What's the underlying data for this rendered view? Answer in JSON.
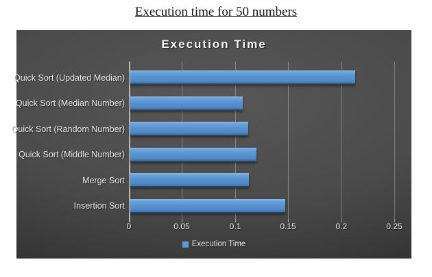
{
  "page": {
    "title": "Execution time for 50 numbers"
  },
  "chart": {
    "title": "Execution Time",
    "legend_label": "Execution Time",
    "colors": {
      "bar": "#5b9bd5",
      "bar_light": "#8cb8e5",
      "bar_dark": "#44709f",
      "background_center": "#575757",
      "background_edge": "#262626",
      "text": "#ededed",
      "axis": "#b9b9b9"
    }
  },
  "chart_data": {
    "type": "bar",
    "orientation": "horizontal",
    "title": "Execution Time",
    "categories": [
      "Quick Sort (Updated Median)",
      "Quick Sort (Median Number)",
      "Quick Sort (Random Number)",
      "Quick Sort (Middle Number)",
      "Merge Sort",
      "Insertion Sort"
    ],
    "series": [
      {
        "name": "Execution Time",
        "values": [
          0.212,
          0.106,
          0.111,
          0.119,
          0.112,
          0.146
        ]
      }
    ],
    "x_ticks": [
      0,
      0.05,
      0.1,
      0.15,
      0.2,
      0.25
    ],
    "x_tick_labels": [
      "0",
      "0.05",
      "0.1",
      "0.15",
      "0.2",
      "0.25"
    ],
    "xlim": [
      0,
      0.25
    ],
    "xlabel": "",
    "ylabel": "",
    "grid": true,
    "legend_position": "bottom"
  }
}
